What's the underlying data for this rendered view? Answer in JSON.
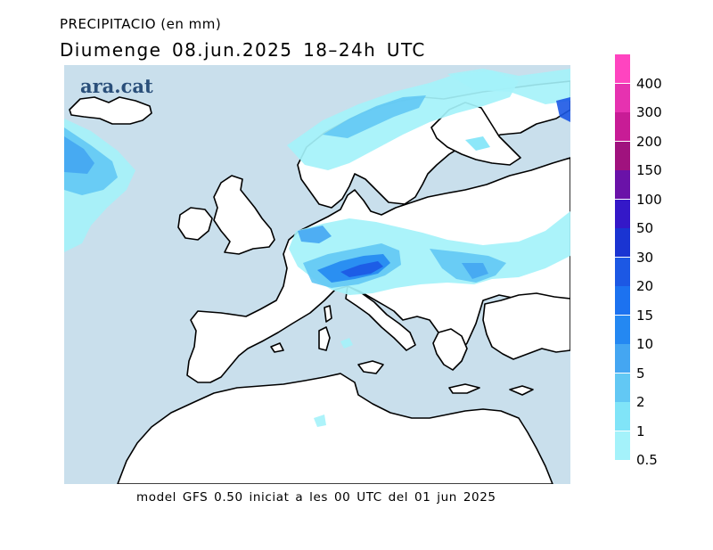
{
  "header": {
    "variable": "PRECIPITACIO (en mm)",
    "period": "Diumenge  08.jun.2025  18–24h  UTC"
  },
  "map": {
    "logo": "ara.cat",
    "logo_color": "#2a4f7a",
    "sea_color": "#c9dfec",
    "land_color": "#ffffff",
    "coast_color": "#000000"
  },
  "footer": {
    "model_info": "model GFS 0.50 iniciat a les 00 UTC del 01 jun 2025"
  },
  "legend": {
    "levels": [
      {
        "label": "400",
        "color": "#ff44c0"
      },
      {
        "label": "300",
        "color": "#e632b0"
      },
      {
        "label": "200",
        "color": "#c81c96"
      },
      {
        "label": "150",
        "color": "#a0127e"
      },
      {
        "label": "100",
        "color": "#6a12a8"
      },
      {
        "label": "50",
        "color": "#3418c8"
      },
      {
        "label": "30",
        "color": "#1a34d2"
      },
      {
        "label": "20",
        "color": "#1c58e4"
      },
      {
        "label": "15",
        "color": "#1c72f0"
      },
      {
        "label": "10",
        "color": "#2488f2"
      },
      {
        "label": "5",
        "color": "#44a6f2"
      },
      {
        "label": "2",
        "color": "#62c8f4"
      },
      {
        "label": "1",
        "color": "#80e4f8"
      },
      {
        "label": "0.5",
        "color": "#a4f2fa"
      }
    ]
  }
}
